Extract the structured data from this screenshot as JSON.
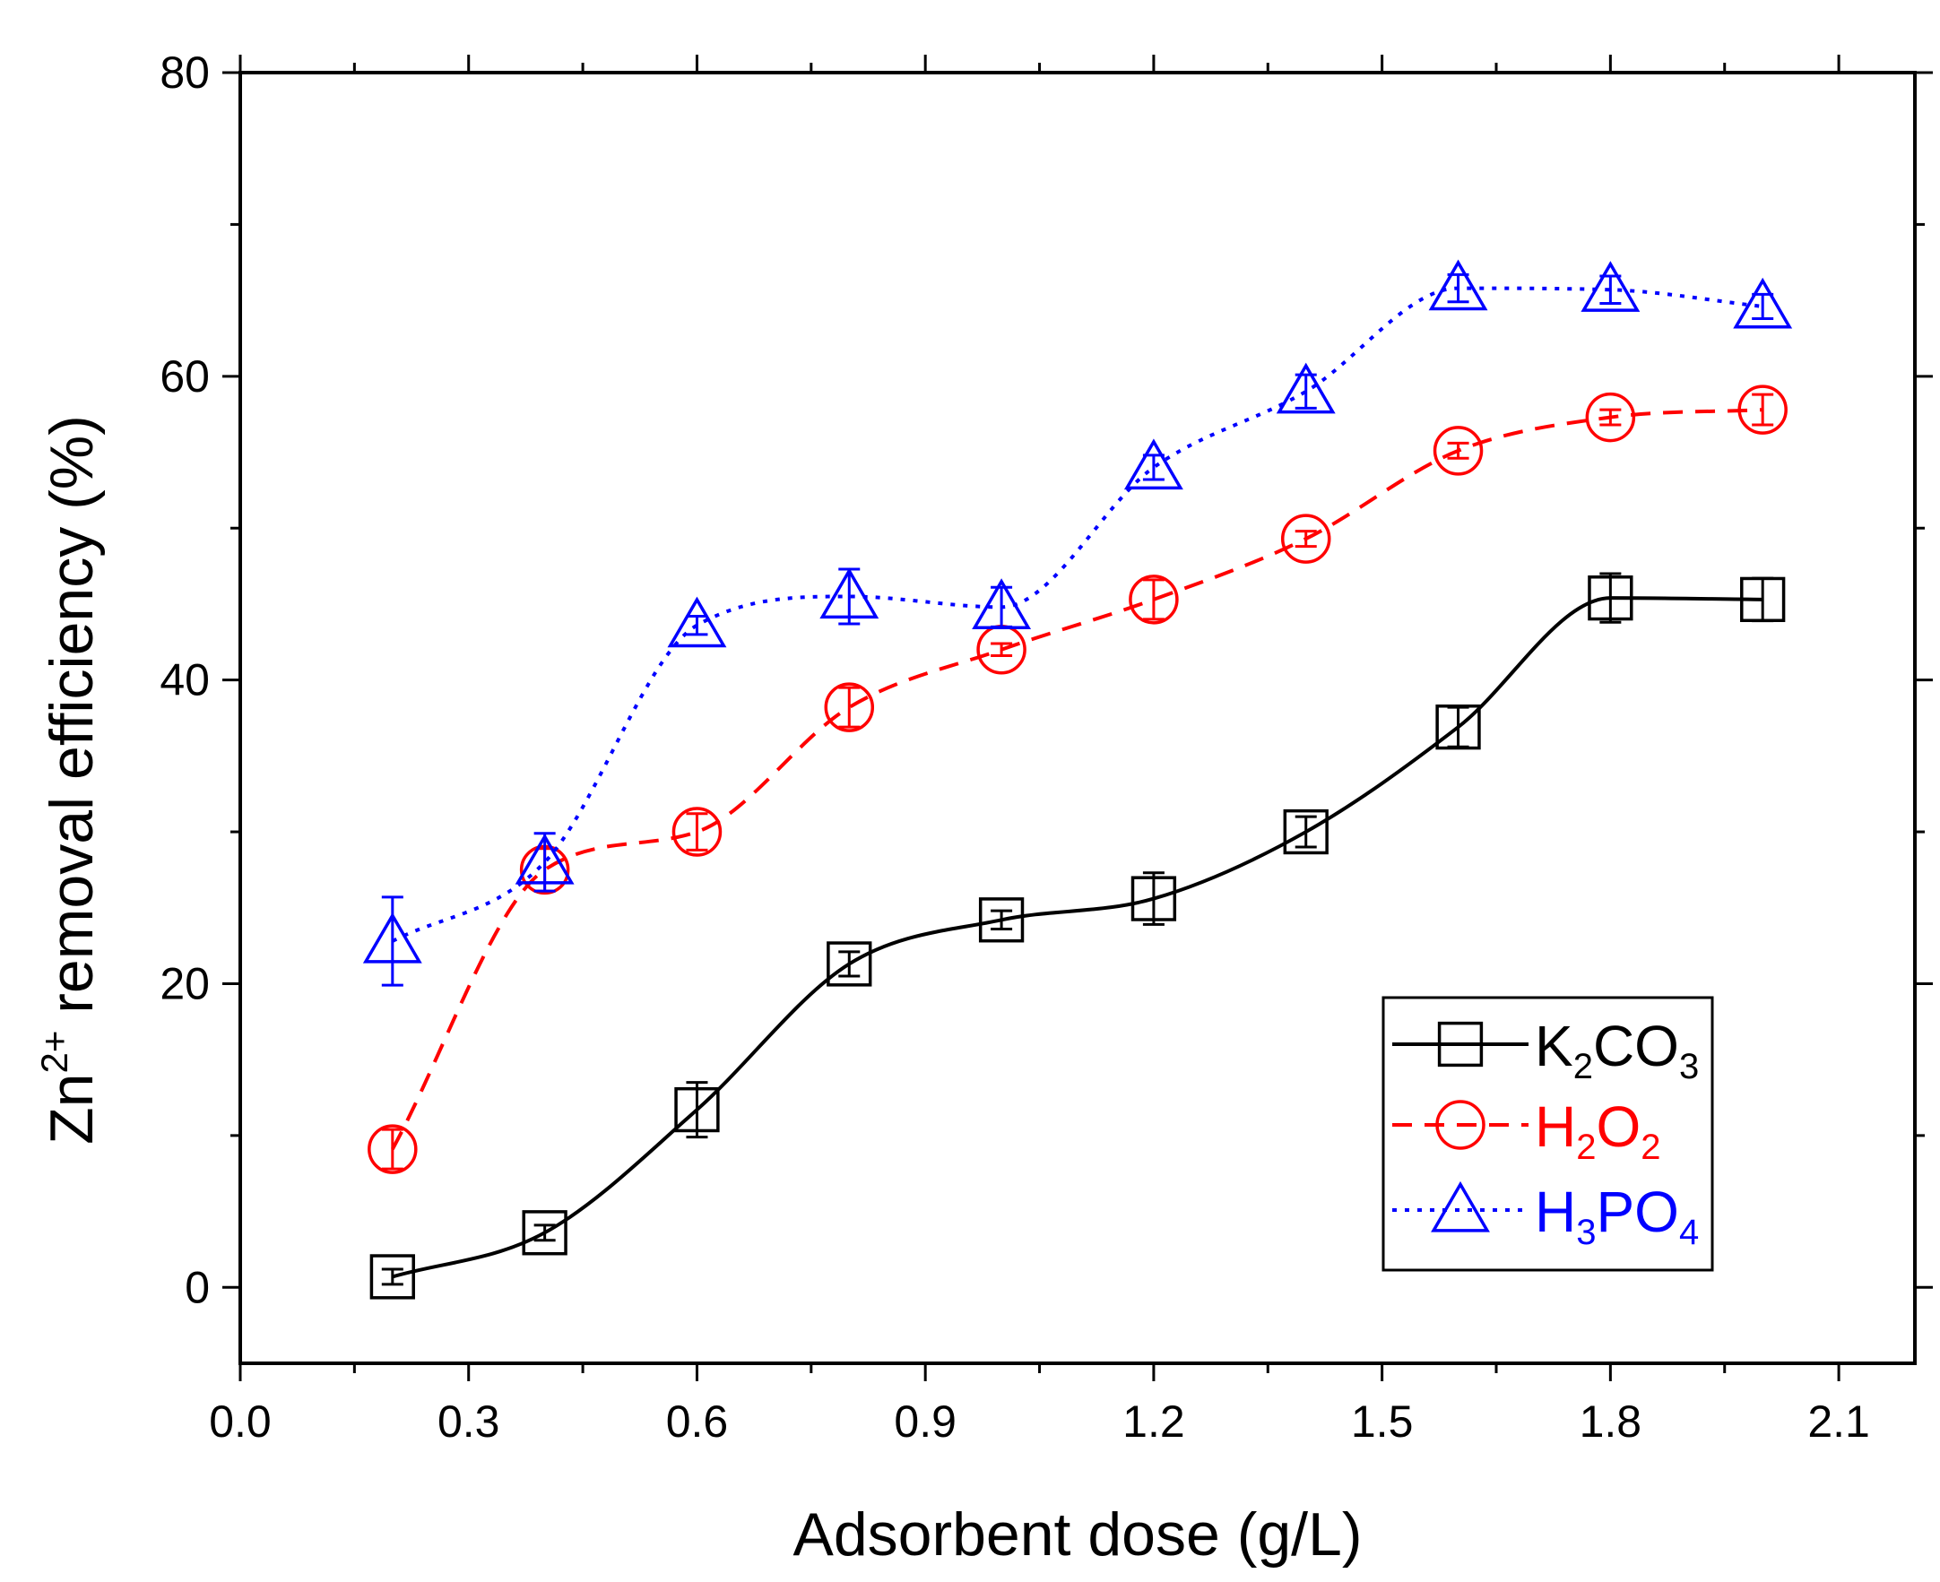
{
  "chart_data": {
    "type": "line",
    "xlabel": "Adsorbent dose (g/L)",
    "ylabel_parts": [
      "Zn",
      "2+",
      " removal efficiency (%)"
    ],
    "xlim": [
      0.0,
      2.2
    ],
    "ylim": [
      -5,
      80
    ],
    "x_ticks": [
      0.0,
      0.3,
      0.6,
      0.9,
      1.2,
      1.5,
      1.8,
      2.1
    ],
    "x_tick_labels": [
      "0.0",
      "0.3",
      "0.6",
      "0.9",
      "1.2",
      "1.5",
      "1.8",
      "2.1"
    ],
    "y_ticks": [
      0,
      20,
      40,
      60,
      80
    ],
    "y_tick_labels": [
      "0",
      "20",
      "40",
      "60",
      "80"
    ],
    "x": [
      0.2,
      0.4,
      0.6,
      0.8,
      1.0,
      1.2,
      1.4,
      1.6,
      1.8,
      2.0
    ],
    "legend_position": "bottom-right",
    "series": [
      {
        "name": "K2CO3",
        "label_parts": [
          [
            "K",
            ""
          ],
          [
            "2",
            "sub"
          ],
          [
            "CO",
            ""
          ],
          [
            "3",
            "sub"
          ]
        ],
        "color": "#000000",
        "marker": "square",
        "dash": "solid",
        "values": [
          0.7,
          3.6,
          11.7,
          21.3,
          24.2,
          25.6,
          30.0,
          36.9,
          45.4,
          45.3
        ],
        "errors": [
          0.5,
          0.5,
          1.8,
          0.8,
          0.6,
          1.7,
          1.0,
          1.3,
          1.6,
          1.4
        ]
      },
      {
        "name": "H2O2",
        "label_parts": [
          [
            "H",
            ""
          ],
          [
            "2",
            "sub"
          ],
          [
            "O",
            ""
          ],
          [
            "2",
            "sub"
          ]
        ],
        "color": "#ff0000",
        "marker": "circle",
        "dash": "dashed",
        "values": [
          9.1,
          27.5,
          30.0,
          38.2,
          42.0,
          45.3,
          49.3,
          55.1,
          57.3,
          57.8
        ],
        "errors": [
          1.3,
          1.4,
          1.2,
          1.3,
          0.4,
          1.3,
          0.5,
          0.5,
          0.5,
          1.0
        ]
      },
      {
        "name": "H3PO4",
        "label_parts": [
          [
            "H",
            ""
          ],
          [
            "3",
            "sub"
          ],
          [
            "PO",
            ""
          ],
          [
            "4",
            "sub"
          ]
        ],
        "color": "#0000ff",
        "marker": "triangle",
        "dash": "dotted",
        "values": [
          22.8,
          28.0,
          43.6,
          45.5,
          44.8,
          54.0,
          59.0,
          65.8,
          65.7,
          64.6
        ],
        "errors": [
          2.9,
          1.9,
          0.6,
          1.8,
          1.3,
          0.8,
          1.1,
          0.9,
          0.9,
          0.8
        ]
      }
    ]
  }
}
